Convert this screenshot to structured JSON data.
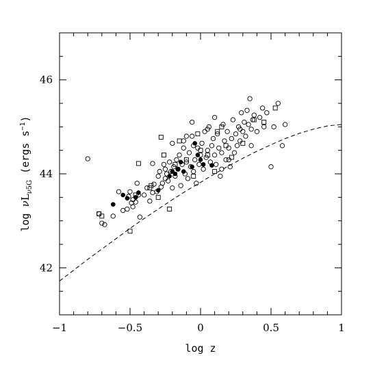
{
  "chart_data": {
    "type": "scatter",
    "xlabel": "log z",
    "ylabel_parts": {
      "a": "log ",
      "nu": "ν",
      "L": "L",
      "sub_nu": "ν",
      "sub_rest": "5G",
      "units_open": " (ergs s",
      "sup": "−1",
      "units_close": ")"
    },
    "xlim": [
      -1,
      1
    ],
    "ylim": [
      41,
      47
    ],
    "x_ticks": [
      -1,
      -0.5,
      0,
      0.5,
      1
    ],
    "x_tick_labels": [
      "−1",
      "−0.5",
      "0",
      "0.5",
      "1"
    ],
    "y_ticks": [
      42,
      44,
      46
    ],
    "y_tick_labels": [
      "42",
      "44",
      "46"
    ],
    "grid": false,
    "series": [
      {
        "marker": "open-circle",
        "points": [
          [
            -0.8,
            44.32
          ],
          [
            -0.72,
            43.15
          ],
          [
            -0.7,
            42.95
          ],
          [
            -0.68,
            42.92
          ],
          [
            -0.62,
            43.1
          ],
          [
            -0.58,
            43.62
          ],
          [
            -0.55,
            43.22
          ],
          [
            -0.52,
            43.25
          ],
          [
            -0.51,
            43.52
          ],
          [
            -0.5,
            43.62
          ],
          [
            -0.49,
            43.38
          ],
          [
            -0.48,
            43.45
          ],
          [
            -0.46,
            43.4
          ],
          [
            -0.45,
            43.8
          ],
          [
            -0.44,
            43.55
          ],
          [
            -0.43,
            43.08
          ],
          [
            -0.4,
            43.55
          ],
          [
            -0.38,
            43.7
          ],
          [
            -0.36,
            43.42
          ],
          [
            -0.34,
            43.6
          ],
          [
            -0.33,
            43.78
          ],
          [
            -0.31,
            43.62
          ],
          [
            -0.3,
            43.95
          ],
          [
            -0.29,
            44.05
          ],
          [
            -0.28,
            43.72
          ],
          [
            -0.27,
            43.8
          ],
          [
            -0.26,
            44.2
          ],
          [
            -0.25,
            44.1
          ],
          [
            -0.25,
            43.9
          ],
          [
            -0.24,
            44.0
          ],
          [
            -0.23,
            43.85
          ],
          [
            -0.22,
            44.25
          ],
          [
            -0.21,
            44.05
          ],
          [
            -0.2,
            44.65
          ],
          [
            -0.19,
            44.15
          ],
          [
            -0.18,
            43.95
          ],
          [
            -0.17,
            44.3
          ],
          [
            -0.16,
            44.1
          ],
          [
            -0.15,
            44.4
          ],
          [
            -0.14,
            43.75
          ],
          [
            -0.13,
            44.2
          ],
          [
            -0.12,
            44.55
          ],
          [
            -0.11,
            44.0
          ],
          [
            -0.1,
            44.25
          ],
          [
            -0.1,
            44.8
          ],
          [
            -0.09,
            43.9
          ],
          [
            -0.08,
            44.45
          ],
          [
            -0.07,
            44.15
          ],
          [
            -0.06,
            45.1
          ],
          [
            -0.05,
            44.6
          ],
          [
            -0.05,
            44.05
          ],
          [
            -0.04,
            44.3
          ],
          [
            -0.03,
            43.8
          ],
          [
            -0.02,
            44.55
          ],
          [
            -0.01,
            44.2
          ],
          [
            0.0,
            44.4
          ],
          [
            0.01,
            44.65
          ],
          [
            0.02,
            44.1
          ],
          [
            0.03,
            44.9
          ],
          [
            0.04,
            44.35
          ],
          [
            0.05,
            44.5
          ],
          [
            0.06,
            45.0
          ],
          [
            0.07,
            44.25
          ],
          [
            0.08,
            44.6
          ],
          [
            0.09,
            44.75
          ],
          [
            0.1,
            44.4
          ],
          [
            0.11,
            44.2
          ],
          [
            0.12,
            44.85
          ],
          [
            0.13,
            44.55
          ],
          [
            0.14,
            43.95
          ],
          [
            0.15,
            44.45
          ],
          [
            0.16,
            45.05
          ],
          [
            0.17,
            44.7
          ],
          [
            0.18,
            44.3
          ],
          [
            0.19,
            44.9
          ],
          [
            0.2,
            44.55
          ],
          [
            0.21,
            44.15
          ],
          [
            0.22,
            44.75
          ],
          [
            0.23,
            45.15
          ],
          [
            0.24,
            44.45
          ],
          [
            0.25,
            44.85
          ],
          [
            0.26,
            44.6
          ],
          [
            0.27,
            45.0
          ],
          [
            0.28,
            44.7
          ],
          [
            0.29,
            45.3
          ],
          [
            0.3,
            44.9
          ],
          [
            0.31,
            45.1
          ],
          [
            0.32,
            44.8
          ],
          [
            0.33,
            45.35
          ],
          [
            0.34,
            45.05
          ],
          [
            0.35,
            45.6
          ],
          [
            0.36,
            44.95
          ],
          [
            0.37,
            45.15
          ],
          [
            0.38,
            45.25
          ],
          [
            0.4,
            44.9
          ],
          [
            0.42,
            45.2
          ],
          [
            0.44,
            45.4
          ],
          [
            0.45,
            45.0
          ],
          [
            0.47,
            45.3
          ],
          [
            0.5,
            44.15
          ],
          [
            0.52,
            45.0
          ],
          [
            0.55,
            45.5
          ],
          [
            0.58,
            44.6
          ],
          [
            0.6,
            45.05
          ],
          [
            0.15,
            44.1
          ],
          [
            -0.34,
            44.22
          ],
          [
            -0.12,
            44.7
          ],
          [
            0.05,
            44.95
          ],
          [
            0.2,
            44.3
          ],
          [
            0.36,
            44.6
          ],
          [
            -0.2,
            43.7
          ],
          [
            -0.06,
            44.8
          ],
          [
            0.1,
            45.2
          ],
          [
            0.28,
            44.95
          ],
          [
            -0.48,
            43.3
          ]
        ]
      },
      {
        "marker": "open-square",
        "points": [
          [
            -0.72,
            43.15
          ],
          [
            -0.7,
            43.1
          ],
          [
            -0.5,
            42.78
          ],
          [
            -0.46,
            43.55
          ],
          [
            -0.44,
            44.22
          ],
          [
            -0.36,
            43.7
          ],
          [
            -0.3,
            43.5
          ],
          [
            -0.28,
            44.78
          ],
          [
            -0.22,
            43.25
          ],
          [
            -0.18,
            44.2
          ],
          [
            -0.15,
            44.7
          ],
          [
            -0.1,
            44.3
          ],
          [
            -0.05,
            43.95
          ],
          [
            -0.02,
            44.85
          ],
          [
            0.05,
            44.4
          ],
          [
            0.1,
            44.05
          ],
          [
            0.12,
            44.9
          ],
          [
            0.18,
            44.6
          ],
          [
            0.22,
            44.35
          ],
          [
            0.3,
            44.65
          ],
          [
            0.38,
            45.15
          ],
          [
            0.45,
            45.1
          ],
          [
            0.53,
            45.4
          ],
          [
            -0.35,
            43.75
          ],
          [
            0.15,
            45.0
          ],
          [
            0.0,
            44.5
          ],
          [
            -0.26,
            44.4
          ]
        ]
      },
      {
        "marker": "filled-circle",
        "points": [
          [
            -0.62,
            43.35
          ],
          [
            -0.55,
            43.55
          ],
          [
            -0.52,
            43.48
          ],
          [
            -0.46,
            43.5
          ],
          [
            -0.44,
            43.6
          ],
          [
            -0.3,
            43.65
          ],
          [
            -0.22,
            43.95
          ],
          [
            -0.18,
            44.0
          ],
          [
            -0.16,
            44.1
          ],
          [
            -0.14,
            44.25
          ],
          [
            -0.12,
            44.05
          ],
          [
            -0.06,
            44.15
          ],
          [
            -0.04,
            44.65
          ],
          [
            -0.02,
            44.4
          ],
          [
            0.0,
            44.3
          ],
          [
            0.02,
            44.2
          ],
          [
            0.08,
            44.18
          ],
          [
            -0.2,
            44.05
          ]
        ]
      }
    ],
    "curve": {
      "style": "dashed",
      "points": [
        [
          -1.0,
          41.72
        ],
        [
          -0.9,
          41.95
        ],
        [
          -0.8,
          42.18
        ],
        [
          -0.7,
          42.4
        ],
        [
          -0.6,
          42.62
        ],
        [
          -0.5,
          42.84
        ],
        [
          -0.4,
          43.05
        ],
        [
          -0.3,
          43.25
        ],
        [
          -0.2,
          43.45
        ],
        [
          -0.1,
          43.64
        ],
        [
          0.0,
          43.82
        ],
        [
          0.1,
          44.0
        ],
        [
          0.2,
          44.17
        ],
        [
          0.3,
          44.33
        ],
        [
          0.4,
          44.48
        ],
        [
          0.5,
          44.62
        ],
        [
          0.6,
          44.75
        ],
        [
          0.7,
          44.86
        ],
        [
          0.8,
          44.95
        ],
        [
          0.9,
          45.02
        ],
        [
          1.0,
          45.05
        ]
      ]
    }
  }
}
